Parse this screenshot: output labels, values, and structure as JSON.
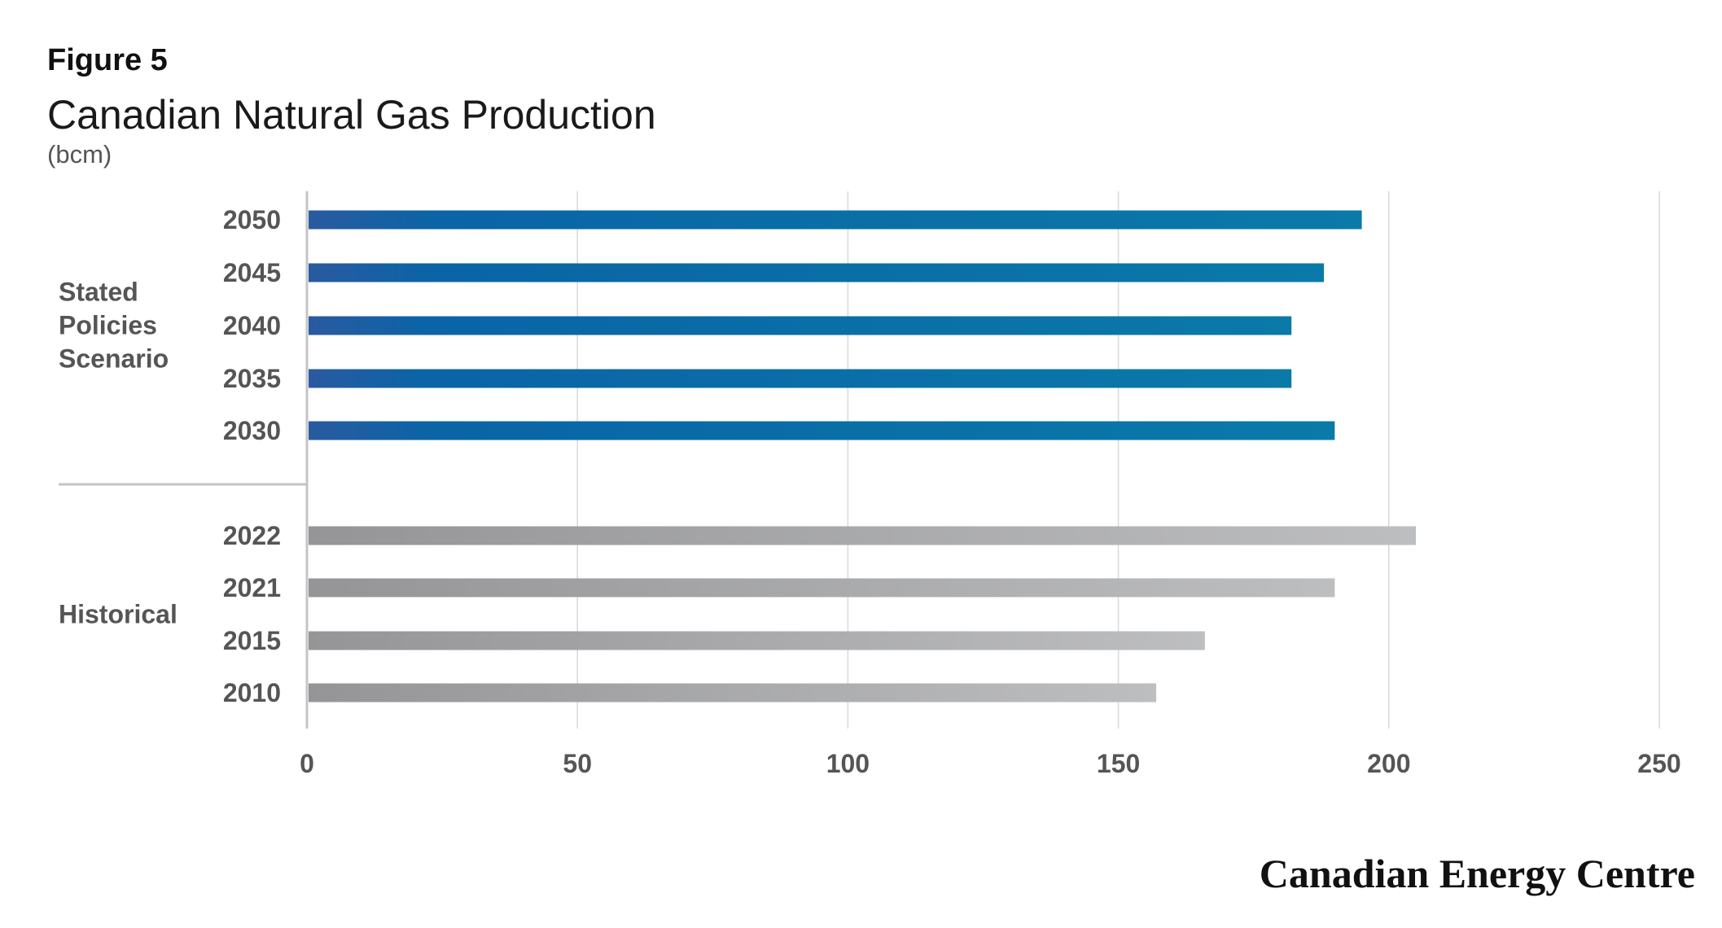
{
  "figure_label": "Figure 5",
  "colors": {
    "projected_start": "#2a5aa0",
    "projected_mid": "#0a64a6",
    "projected_end": "#0a7aa8",
    "historical_start": "#959597",
    "historical_end": "#bdbec0",
    "grid": "#d9d9d9",
    "axis": "#c4c4c4",
    "text": "#555555"
  },
  "chart_data": {
    "type": "bar",
    "orientation": "horizontal",
    "title": "Canadian Natural Gas Production",
    "subtitle": "(bcm)",
    "xlim": [
      0,
      250
    ],
    "xticks": [
      0,
      50,
      100,
      150,
      200,
      250
    ],
    "grid": true,
    "groups": [
      {
        "name": "Stated Policies Scenario",
        "name_lines": [
          "Stated",
          "Policies",
          "Scenario"
        ],
        "kind": "projected",
        "categories": [
          "2050",
          "2045",
          "2040",
          "2035",
          "2030"
        ],
        "values": [
          195,
          188,
          182,
          182,
          190
        ]
      },
      {
        "name": "Historical",
        "name_lines": [
          "Historical"
        ],
        "kind": "historical",
        "categories": [
          "2022",
          "2021",
          "2015",
          "2010"
        ],
        "values": [
          205,
          190,
          166,
          157
        ]
      }
    ]
  },
  "brand": "Canadian Energy Centre"
}
